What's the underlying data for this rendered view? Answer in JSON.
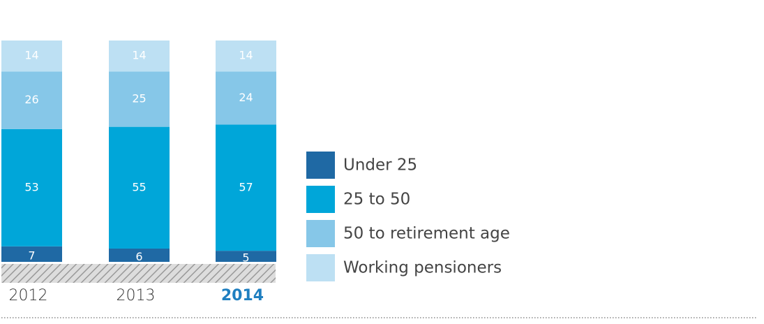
{
  "chart_data": {
    "type": "stacked-bar",
    "categories": [
      "2012",
      "2013",
      "2014"
    ],
    "ylim": [
      0,
      100
    ],
    "series": [
      {
        "name": "Under 25",
        "color": "#1f69a4",
        "values": [
          7,
          6,
          5
        ]
      },
      {
        "name": "25 to 50",
        "color": "#00a6d9",
        "values": [
          53,
          55,
          57
        ]
      },
      {
        "name": "50 to retirement age",
        "color": "#86c7e8",
        "values": [
          26,
          25,
          24
        ]
      },
      {
        "name": "Working pensioners",
        "color": "#bde0f3",
        "values": [
          14,
          14,
          14
        ]
      }
    ]
  }
}
